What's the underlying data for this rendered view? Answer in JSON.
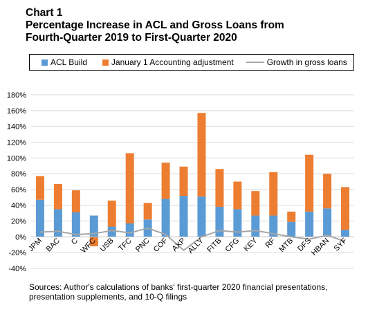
{
  "title": {
    "line1": "Chart 1",
    "line2": "Percentage Increase in ACL and Gross Loans from",
    "line3": "Fourth-Quarter 2019 to First-Quarter 2020"
  },
  "legend": {
    "acl_build": "ACL Build",
    "adjustment": "January 1 Accounting adjustment",
    "growth": "Growth in gross loans"
  },
  "colors": {
    "acl_build": "#5b9bd5",
    "adjustment": "#ed7d31",
    "growth": "#a6a6a6",
    "grid": "#d9d9d9"
  },
  "chart_data": {
    "type": "bar",
    "stacked": true,
    "categories": [
      "JPM",
      "BAC",
      "C",
      "WFC",
      "USB",
      "TFC",
      "PNC",
      "COF",
      "AXP",
      "ALLY",
      "FITB",
      "CFG",
      "KEY",
      "RF",
      "MTB",
      "DFS",
      "HBAN",
      "SYF"
    ],
    "series": [
      {
        "name": "ACL Build",
        "kind": "bar",
        "values": [
          47,
          35,
          31,
          27,
          13,
          17,
          22,
          48,
          52,
          51,
          38,
          35,
          27,
          27,
          19,
          32,
          36,
          9
        ]
      },
      {
        "name": "January 1 Accounting adjustment",
        "kind": "bar",
        "values": [
          30,
          32,
          28,
          -12,
          33,
          89,
          21,
          46,
          37,
          106,
          48,
          35,
          31,
          55,
          13,
          72,
          44,
          54
        ]
      },
      {
        "name": "Growth in gross loans",
        "kind": "line",
        "values": [
          6,
          7,
          3,
          4,
          8,
          5,
          11,
          3,
          -17,
          0,
          8,
          6,
          8,
          4,
          0,
          -3,
          2,
          -6
        ]
      }
    ],
    "y_ticks": [
      "180%",
      "160%",
      "140%",
      "120%",
      "100%",
      "80%",
      "60%",
      "40%",
      "20%",
      "0%",
      "-20%",
      "-40%"
    ],
    "ylim": [
      -40,
      180
    ],
    "ytick_step": 20,
    "grid": true,
    "legend_position": "top"
  },
  "source_note": "Sources: Author's calculations of banks' first-quarter 2020 financial presentations, presentation supplements, and 10-Q filings"
}
